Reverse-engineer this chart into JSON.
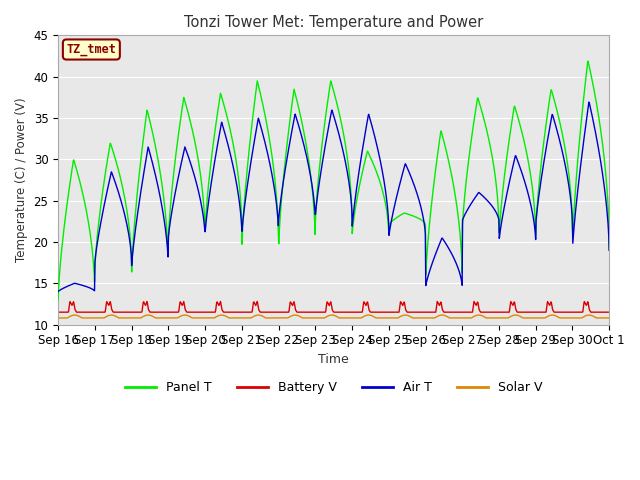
{
  "title": "Tonzi Tower Met: Temperature and Power",
  "xlabel": "Time",
  "ylabel": "Temperature (C) / Power (V)",
  "ylim": [
    10,
    45
  ],
  "background_color": "#ffffff",
  "plot_bg_color": "#e8e8e8",
  "annotation_text": "TZ_tmet",
  "annotation_bg": "#ffffcc",
  "annotation_border": "#8B0000",
  "annotation_text_color": "#8B0000",
  "x_tick_labels": [
    "Sep 16",
    "Sep 17",
    "Sep 18",
    "Sep 19",
    "Sep 20",
    "Sep 21",
    "Sep 22",
    "Sep 23",
    "Sep 24",
    "Sep 25",
    "Sep 26",
    "Sep 27",
    "Sep 28",
    "Sep 29",
    "Sep 30",
    "Oct 1"
  ],
  "panel_t_color": "#00ee00",
  "battery_v_color": "#dd0000",
  "air_t_color": "#0000cc",
  "solar_v_color": "#dd8800",
  "grid_color": "#ffffff",
  "series_linewidth": 1.0
}
